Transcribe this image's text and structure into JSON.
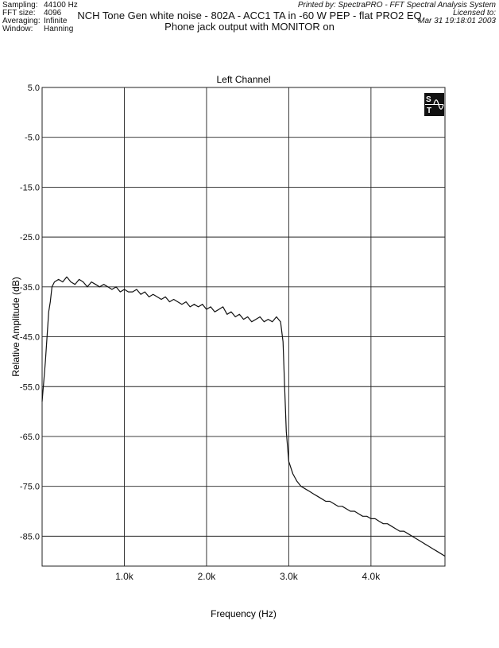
{
  "header": {
    "left": [
      {
        "key": "Sampling:",
        "value": "44100 Hz"
      },
      {
        "key": "FFT size:",
        "value": "4096"
      },
      {
        "key": "Averaging:",
        "value": "Infinite"
      },
      {
        "key": "Window:",
        "value": "Hanning"
      }
    ],
    "right": [
      "Printed by: SpectraPRO - FFT Spectral Analysis System",
      "Licensed to:",
      "Mar 31 19:18:01 2003"
    ]
  },
  "chart_data": {
    "type": "line",
    "title": "NCH Tone Gen white noise - 802A - ACC1 TA in -60 W PEP - flat PRO2 EQ",
    "subtitle": "Phone jack output with MONITOR on",
    "channel_label": "Left Channel",
    "xlabel": "Frequency (Hz)",
    "ylabel": "Relative Amplitude (dB)",
    "xlim": [
      0,
      4900
    ],
    "ylim": [
      -91,
      5
    ],
    "x_ticks": [
      {
        "value": 1000,
        "label": "1.0k"
      },
      {
        "value": 2000,
        "label": "2.0k"
      },
      {
        "value": 3000,
        "label": "3.0k"
      },
      {
        "value": 4000,
        "label": "4.0k"
      }
    ],
    "y_ticks": [
      {
        "value": 5,
        "label": "5.0"
      },
      {
        "value": -5,
        "label": "-5.0"
      },
      {
        "value": -15,
        "label": "-15.0"
      },
      {
        "value": -25,
        "label": "-25.0"
      },
      {
        "value": -35,
        "label": "-35.0"
      },
      {
        "value": -45,
        "label": "-45.0"
      },
      {
        "value": -55,
        "label": "-55.0"
      },
      {
        "value": -65,
        "label": "-65.0"
      },
      {
        "value": -75,
        "label": "-75.0"
      },
      {
        "value": -85,
        "label": "-85.0"
      }
    ],
    "grid": true,
    "line_color": "#111111",
    "logo_icon": "spectrapro-logo-icon",
    "series": [
      {
        "x": [
          0,
          40,
          80,
          100,
          120,
          150,
          200,
          250,
          300,
          350,
          400,
          450,
          500,
          550,
          600,
          650,
          700,
          750,
          800,
          850,
          900,
          950,
          1000,
          1050,
          1100,
          1150,
          1200,
          1250,
          1300,
          1350,
          1400,
          1450,
          1500,
          1550,
          1600,
          1650,
          1700,
          1750,
          1800,
          1850,
          1900,
          1950,
          2000,
          2050,
          2100,
          2150,
          2200,
          2250,
          2300,
          2350,
          2400,
          2450,
          2500,
          2550,
          2600,
          2650,
          2700,
          2750,
          2800,
          2850,
          2900,
          2930,
          2950,
          2970,
          3000,
          3050,
          3100,
          3150,
          3200,
          3250,
          3300,
          3350,
          3400,
          3450,
          3500,
          3550,
          3600,
          3650,
          3700,
          3750,
          3800,
          3850,
          3900,
          3950,
          4000,
          4050,
          4100,
          4150,
          4200,
          4250,
          4300,
          4350,
          4400,
          4450,
          4500,
          4550,
          4600,
          4650,
          4700,
          4750,
          4800,
          4850,
          4900
        ],
        "y": [
          -58,
          -50,
          -40,
          -38,
          -35,
          -34,
          -33.5,
          -34,
          -33,
          -34,
          -34.5,
          -33.5,
          -34,
          -35,
          -34,
          -34.5,
          -35,
          -34.5,
          -35,
          -35.5,
          -35,
          -36,
          -35.5,
          -36,
          -36,
          -35.5,
          -36.5,
          -36,
          -37,
          -36.5,
          -37,
          -37.5,
          -37,
          -38,
          -37.5,
          -38,
          -38.5,
          -38,
          -39,
          -38.5,
          -39,
          -38.5,
          -39.5,
          -39,
          -40,
          -39.5,
          -39,
          -40.5,
          -40,
          -41,
          -40.5,
          -41.5,
          -41,
          -42,
          -41.5,
          -41,
          -42,
          -41.5,
          -42,
          -41,
          -42,
          -46,
          -55,
          -64,
          -70,
          -72.5,
          -74,
          -75,
          -75.5,
          -76,
          -76.5,
          -77,
          -77.5,
          -78,
          -78,
          -78.5,
          -79,
          -79,
          -79.5,
          -80,
          -80,
          -80.5,
          -81,
          -81,
          -81.5,
          -81.5,
          -82,
          -82.5,
          -82.5,
          -83,
          -83.5,
          -84,
          -84,
          -84.5,
          -85,
          -85.5,
          -86,
          -86.5,
          -87,
          -87.5,
          -88,
          -88.5,
          -89
        ]
      }
    ]
  }
}
